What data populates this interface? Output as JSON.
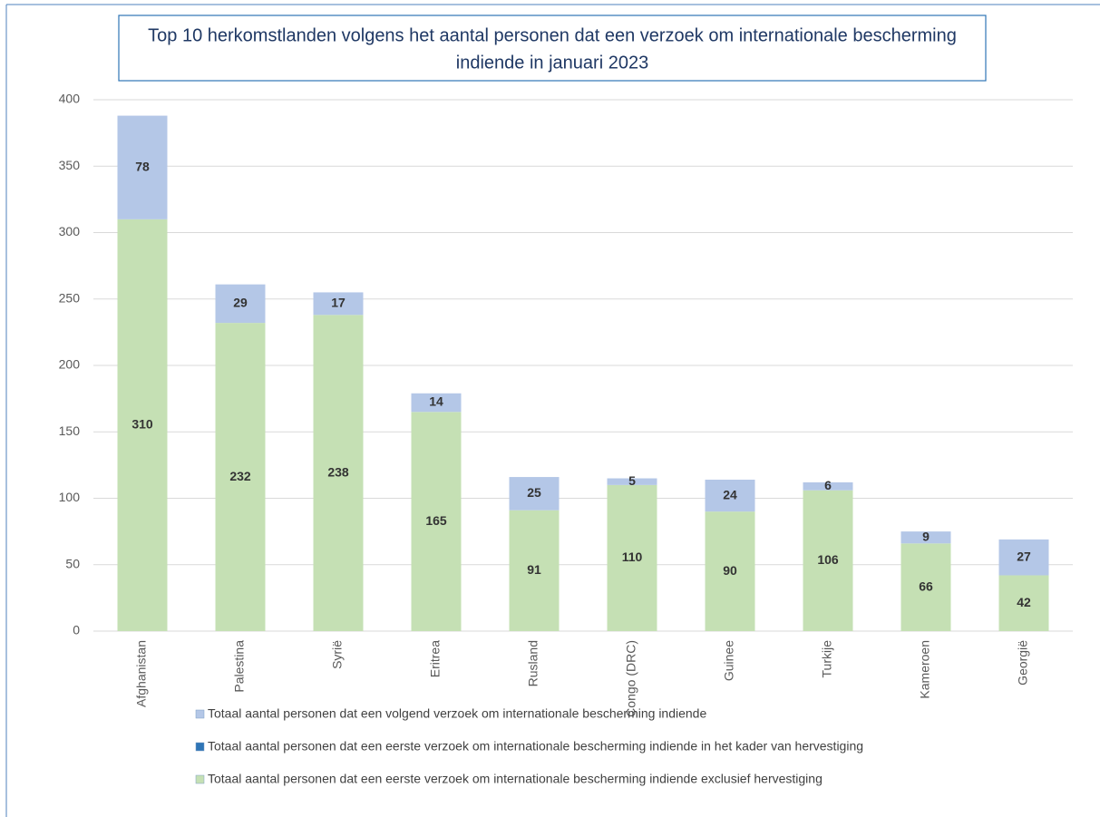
{
  "chart_data": {
    "type": "stacked_bar",
    "title": [
      "Top 10 herkomstlanden volgens het aantal personen dat een verzoek om internationale bescherming",
      "indiende in januari 2023"
    ],
    "categories": [
      "Afghanistan",
      "Palestina",
      "Syrië",
      "Eritrea",
      "Rusland",
      "Congo (DRC)",
      "Guinee",
      "Turkije",
      "Kameroen",
      "Georgië"
    ],
    "series": [
      {
        "name": "Totaal aantal personen dat een eerste verzoek om internationale bescherming indiende exclusief hervestiging",
        "color": "#c5e0b4",
        "values": [
          310,
          232,
          238,
          165,
          91,
          110,
          90,
          106,
          66,
          42
        ]
      },
      {
        "name": "Totaal aantal personen dat een eerste verzoek om internationale bescherming indiende in het kader van hervestiging",
        "color": "#2e75b6",
        "values": [
          0,
          0,
          0,
          0,
          0,
          0,
          0,
          0,
          0,
          0
        ]
      },
      {
        "name": "Totaal aantal personen dat een volgend verzoek om internationale bescherming indiende",
        "color": "#b4c7e7",
        "values": [
          78,
          29,
          17,
          14,
          25,
          5,
          24,
          6,
          9,
          27
        ]
      }
    ],
    "ylim": [
      0,
      400
    ],
    "yticks": [
      0,
      50,
      100,
      150,
      200,
      250,
      300,
      350,
      400
    ],
    "grid": true
  }
}
